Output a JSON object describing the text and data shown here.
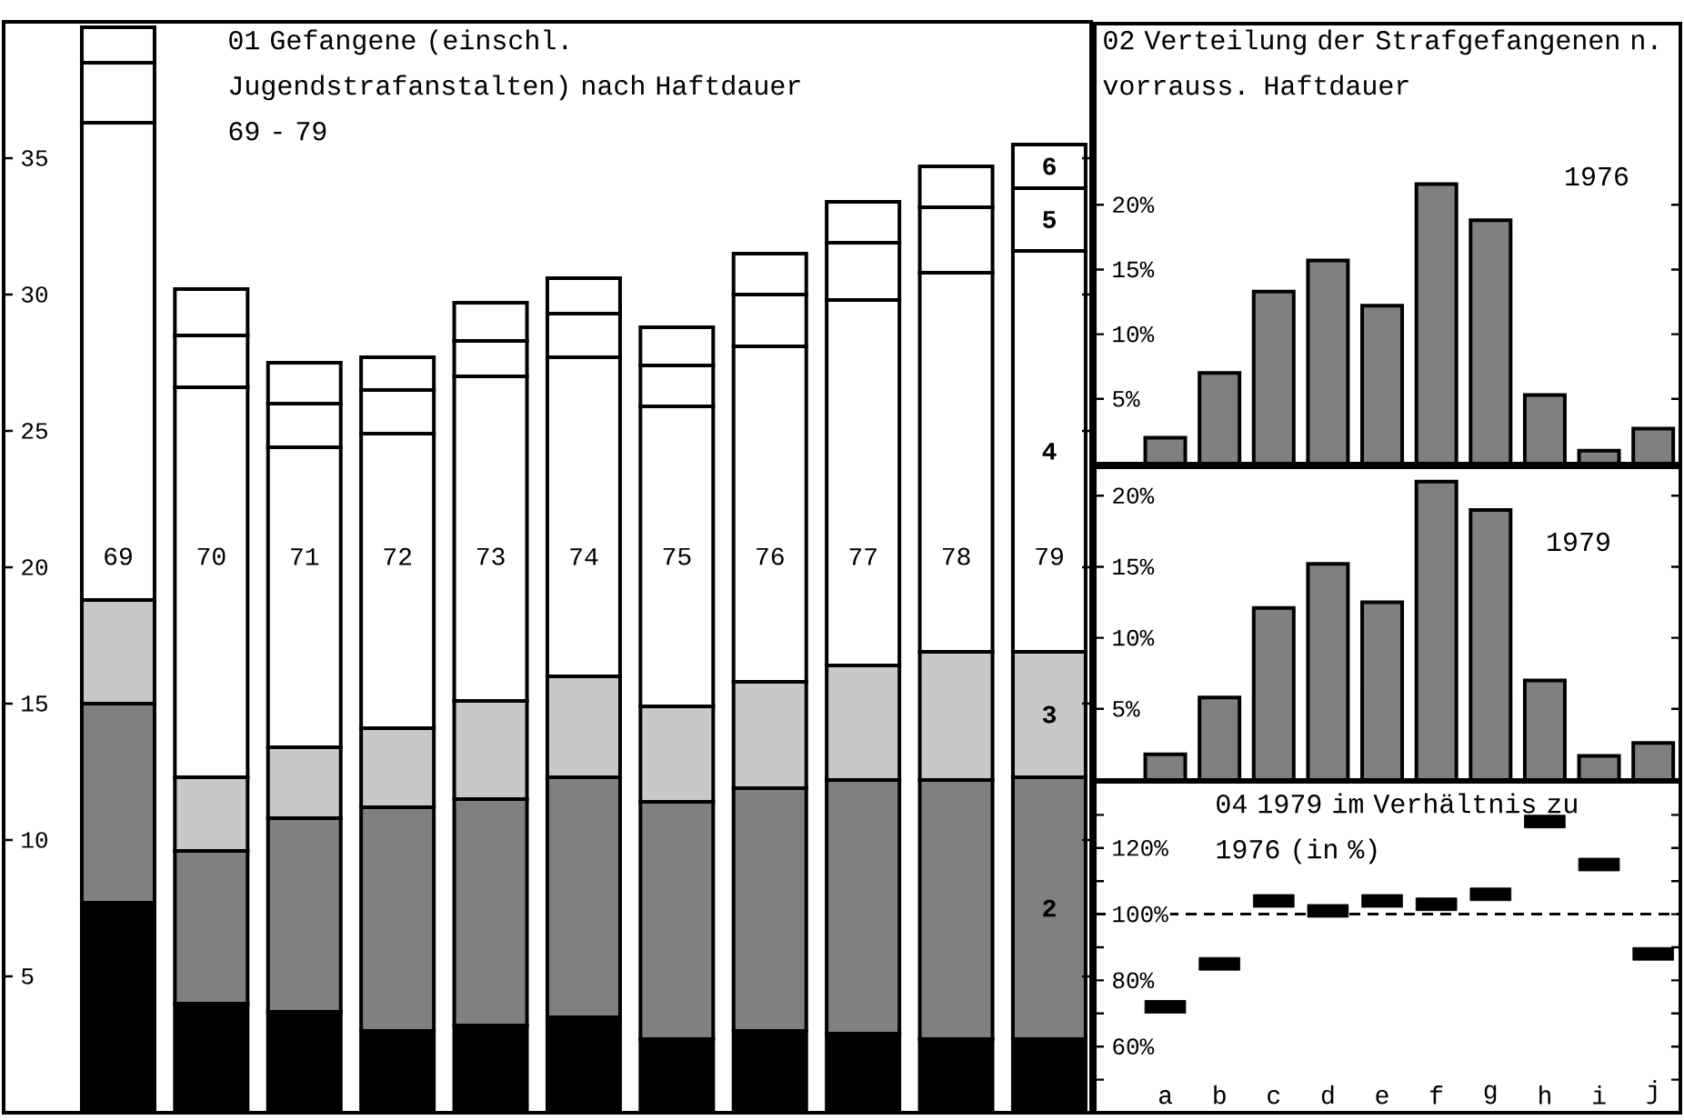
{
  "chart_data": [
    {
      "type": "bar",
      "title": "01 Gefangene (einschl. Jugendstrafanstalten) nach Haftdauer 69 - 79",
      "stacked": true,
      "legend": "right",
      "categories": [
        "69",
        "70",
        "71",
        "72",
        "73",
        "74",
        "75",
        "76",
        "77",
        "78",
        "79"
      ],
      "series": [
        {
          "color": "#000000",
          "values": [
            7.7,
            4.0,
            3.7,
            3.0,
            3.2,
            3.5,
            2.7,
            3.0,
            2.9,
            2.7,
            2.7
          ]
        },
        {
          "name": "2",
          "color": "#808080",
          "values": [
            7.3,
            5.6,
            7.1,
            8.2,
            8.3,
            8.8,
            8.7,
            8.9,
            9.3,
            9.5,
            9.6
          ]
        },
        {
          "name": "3",
          "color": "#c8c8c8",
          "values": [
            3.8,
            2.7,
            2.6,
            2.9,
            3.6,
            3.7,
            3.5,
            3.9,
            4.2,
            4.7,
            4.6
          ]
        },
        {
          "name": "4",
          "color": "#ffffff",
          "values": [
            17.5,
            14.3,
            11.0,
            10.8,
            11.9,
            11.7,
            11.0,
            12.3,
            13.4,
            13.9,
            14.7
          ]
        },
        {
          "name": "5",
          "color": "#ffffff",
          "values": [
            2.2,
            1.9,
            1.6,
            1.6,
            1.3,
            1.6,
            1.5,
            1.9,
            2.1,
            2.4,
            2.3
          ]
        },
        {
          "name": "6",
          "color": "#ffffff",
          "values": [
            1.3,
            1.7,
            1.5,
            1.2,
            1.4,
            1.3,
            1.4,
            1.5,
            1.5,
            1.5,
            1.6
          ]
        }
      ],
      "ylim": [
        0,
        40
      ],
      "yticks": [
        5,
        10,
        15,
        20,
        25,
        30,
        35
      ]
    },
    {
      "type": "bar",
      "title": "02 Verteilung der Strafgefangenen n. vorrauss. Haftdauer",
      "annotations": [
        "1976"
      ],
      "categories": [
        null,
        null,
        null,
        null,
        null,
        null,
        null,
        null,
        null,
        null
      ],
      "color": "#808080",
      "values": [
        2.0,
        7.0,
        13.3,
        15.7,
        12.2,
        21.6,
        18.8,
        5.3,
        1.0,
        2.7
      ],
      "ylim": [
        0,
        34
      ],
      "yticks": [
        {
          "value": 5,
          "label": "5%"
        },
        {
          "value": 10,
          "label": "10%"
        },
        {
          "value": 15,
          "label": "15%"
        },
        {
          "value": 20,
          "label": "20%"
        }
      ]
    },
    {
      "type": "bar",
      "annotations": [
        "1979"
      ],
      "categories": [
        null,
        null,
        null,
        null,
        null,
        null,
        null,
        null,
        null,
        null
      ],
      "color": "#808080",
      "values": [
        1.8,
        5.8,
        12.1,
        15.2,
        12.5,
        21.0,
        19.0,
        7.0,
        1.7,
        2.6
      ],
      "ylim": [
        0,
        22
      ],
      "yticks": [
        {
          "value": 5,
          "label": "5%"
        },
        {
          "value": 10,
          "label": "10%"
        },
        {
          "value": 15,
          "label": "15%"
        },
        {
          "value": 20,
          "label": "20%"
        }
      ]
    },
    {
      "type": "scatter",
      "title": "04 1979 im Verhältnis zu 1976 (in %)",
      "categories": [
        "a",
        "b",
        "c",
        "d",
        "e",
        "f",
        "g",
        "h",
        "i",
        "j"
      ],
      "color": "#000000",
      "values": [
        72,
        85,
        104,
        101,
        104,
        103,
        106,
        128,
        115,
        88
      ],
      "ylim": [
        40,
        140
      ],
      "yticks": [
        {
          "value": 50,
          "label": null
        },
        {
          "value": 60,
          "label": "60%"
        },
        {
          "value": 70,
          "label": null
        },
        {
          "value": 80,
          "label": "80%"
        },
        {
          "value": 90,
          "label": null
        },
        {
          "value": 100,
          "label": "100%"
        },
        {
          "value": 110,
          "label": null
        },
        {
          "value": 120,
          "label": "120%"
        },
        {
          "value": 130,
          "label": null
        }
      ],
      "ref_lines": [
        {
          "axis": "y",
          "value": 100,
          "line_style": "dashed"
        }
      ]
    }
  ]
}
